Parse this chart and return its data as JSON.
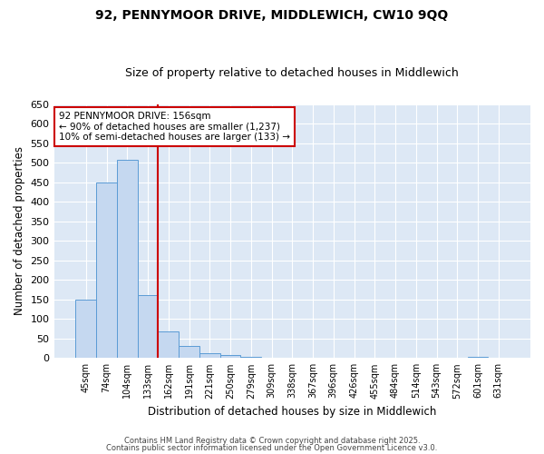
{
  "title1": "92, PENNYMOOR DRIVE, MIDDLEWICH, CW10 9QQ",
  "title2": "Size of property relative to detached houses in Middlewich",
  "xlabel": "Distribution of detached houses by size in Middlewich",
  "ylabel": "Number of detached properties",
  "categories": [
    "45sqm",
    "74sqm",
    "104sqm",
    "133sqm",
    "162sqm",
    "191sqm",
    "221sqm",
    "250sqm",
    "279sqm",
    "309sqm",
    "338sqm",
    "367sqm",
    "396sqm",
    "426sqm",
    "455sqm",
    "484sqm",
    "514sqm",
    "543sqm",
    "572sqm",
    "601sqm",
    "631sqm"
  ],
  "values": [
    150,
    450,
    507,
    160,
    68,
    32,
    13,
    8,
    4,
    0,
    0,
    0,
    0,
    0,
    0,
    0,
    0,
    0,
    0,
    4,
    0
  ],
  "bar_color": "#c5d8f0",
  "bar_edge_color": "#5b9bd5",
  "red_line_index": 4,
  "annotation_text": "92 PENNYMOOR DRIVE: 156sqm\n← 90% of detached houses are smaller (1,237)\n10% of semi-detached houses are larger (133) →",
  "annotation_box_color": "#ffffff",
  "annotation_box_edge": "#cc0000",
  "annotation_text_color": "#000000",
  "red_line_color": "#cc0000",
  "plot_bg_color": "#dde8f5",
  "fig_bg_color": "#ffffff",
  "grid_color": "#ffffff",
  "ylim": [
    0,
    650
  ],
  "yticks": [
    0,
    50,
    100,
    150,
    200,
    250,
    300,
    350,
    400,
    450,
    500,
    550,
    600,
    650
  ],
  "footer1": "Contains HM Land Registry data © Crown copyright and database right 2025.",
  "footer2": "Contains public sector information licensed under the Open Government Licence v3.0."
}
